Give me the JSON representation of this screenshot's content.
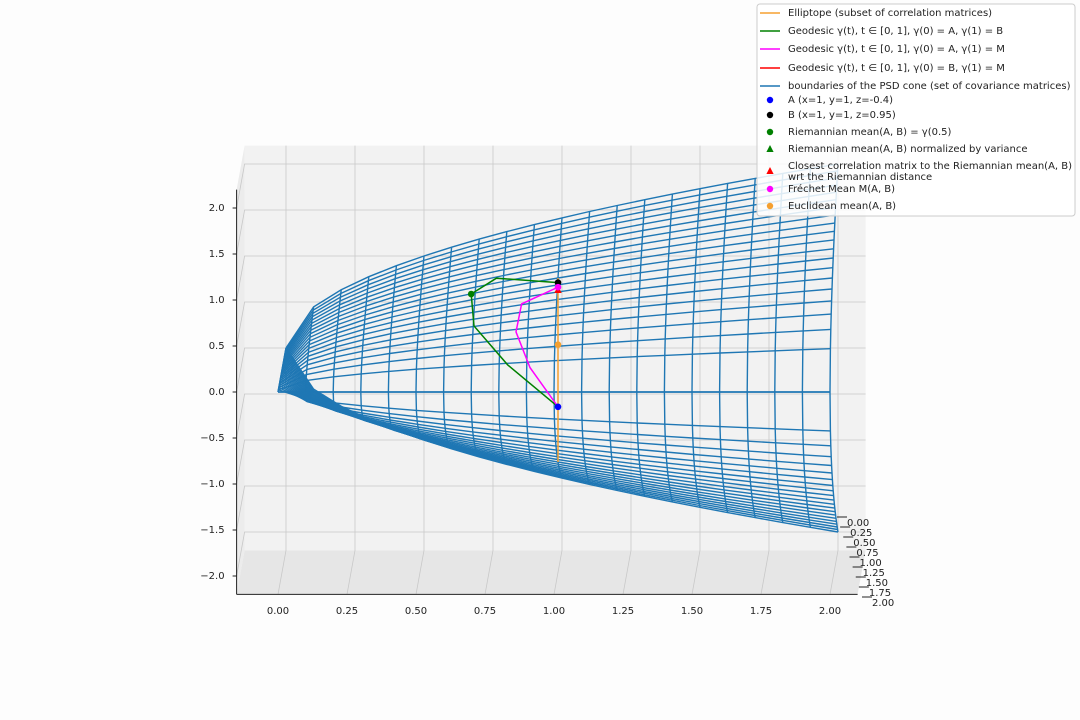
{
  "chart_data": {
    "type": "surface3d",
    "xlim": [
      -0.15,
      2.1
    ],
    "ylim": [
      0,
      2
    ],
    "zlim": [
      -2.2,
      2.2
    ],
    "grid": true,
    "legend": "upper right",
    "xticks": [
      {
        "value": 0,
        "label": "0.00"
      },
      {
        "value": 0.25,
        "label": "0.25"
      },
      {
        "value": 0.5,
        "label": "0.50"
      },
      {
        "value": 0.75,
        "label": "0.75"
      },
      {
        "value": 1,
        "label": "1.00"
      },
      {
        "value": 1.25,
        "label": "1.25"
      },
      {
        "value": 1.5,
        "label": "1.50"
      },
      {
        "value": 1.75,
        "label": "1.75"
      },
      {
        "value": 2,
        "label": "2.00"
      }
    ],
    "yticks": [
      {
        "value": 0,
        "label": "0.00"
      },
      {
        "value": 0.25,
        "label": "0.25"
      },
      {
        "value": 0.5,
        "label": "0.50"
      },
      {
        "value": 0.75,
        "label": "0.75"
      },
      {
        "value": 1,
        "label": "1.00"
      },
      {
        "value": 1.25,
        "label": "1.25"
      },
      {
        "value": 1.5,
        "label": "1.50"
      },
      {
        "value": 1.75,
        "label": "1.75"
      },
      {
        "value": 2,
        "label": "2.00"
      }
    ],
    "zticks": [
      {
        "value": -2,
        "label": "−2.0"
      },
      {
        "value": -1.5,
        "label": "−1.5"
      },
      {
        "value": -1,
        "label": "−1.0"
      },
      {
        "value": -0.5,
        "label": "−0.5"
      },
      {
        "value": 0,
        "label": "0.0"
      },
      {
        "value": 0.5,
        "label": "0.5"
      },
      {
        "value": 1,
        "label": "1.0"
      },
      {
        "value": 1.5,
        "label": "1.5"
      },
      {
        "value": 2,
        "label": "2.0"
      }
    ],
    "series": [
      {
        "name": "Elliptope (subset of correlation matrices)",
        "color": "#f5a030",
        "marker": "line",
        "x": [
          1,
          1
        ],
        "y": [
          1,
          1
        ],
        "z": [
          -1,
          1
        ]
      },
      {
        "name": "Geodesic γ(t), t ∈ [0, 1], γ(0) = A, γ(1) = B",
        "color": "#008000",
        "marker": "line",
        "x": [
          1,
          0.82,
          0.7,
          0.69,
          0.78,
          1
        ],
        "y": [
          1,
          0.82,
          0.7,
          0.69,
          0.78,
          1
        ],
        "z": [
          -0.4,
          0.1,
          0.55,
          0.9,
          1.05,
          0.95
        ]
      },
      {
        "name": "Geodesic γ(t), t ∈ [0, 1], γ(0) = A, γ(1) = M",
        "color": "#ff00ff",
        "marker": "line",
        "x": [
          1,
          0.9,
          0.85,
          0.87,
          1
        ],
        "y": [
          1,
          0.9,
          0.85,
          0.87,
          1
        ],
        "z": [
          -0.4,
          0.05,
          0.45,
          0.75,
          0.9
        ]
      },
      {
        "name": "Geodesic γ(t), t ∈ [0, 1], γ(0) = B, γ(1) = M",
        "color": "#ff0000",
        "marker": "line",
        "x": [
          1,
          1
        ],
        "y": [
          1,
          1
        ],
        "z": [
          0.95,
          0.9
        ]
      },
      {
        "name": "boundaries of the PSD cone (set of covariance matrices)",
        "color": "#1f77b4",
        "marker": "surface"
      },
      {
        "name": "A (x=1, y=1, z=-0.4)",
        "color": "#0000ff",
        "marker": "o",
        "x": [
          1
        ],
        "y": [
          1
        ],
        "z": [
          -0.4
        ]
      },
      {
        "name": "B (x=1, y=1, z=0.95)",
        "color": "#000000",
        "marker": "o",
        "x": [
          1
        ],
        "y": [
          1
        ],
        "z": [
          0.95
        ]
      },
      {
        "name": "Riemannian mean(A, B) = γ(0.5)",
        "color": "#008000",
        "marker": "o",
        "x": [
          0.69
        ],
        "y": [
          0.69
        ],
        "z": [
          0.9
        ]
      },
      {
        "name": "Riemannian mean(A, B) normalized by variance",
        "color": "#008000",
        "marker": "^",
        "x": [
          1
        ],
        "y": [
          1
        ],
        "z": [
          0.87
        ]
      },
      {
        "name": "Closest correlation matrix to the Riemannian mean(A, B)\nwrt the Riemannian distance",
        "color": "#ff0000",
        "marker": "^",
        "x": [
          1
        ],
        "y": [
          1
        ],
        "z": [
          0.87
        ]
      },
      {
        "name": "Fréchet Mean M(A, B)",
        "color": "#ff00ff",
        "marker": "o",
        "x": [
          1
        ],
        "y": [
          1
        ],
        "z": [
          0.9
        ]
      },
      {
        "name": "Euclidean mean(A, B)",
        "color": "#f5a030",
        "marker": "o",
        "x": [
          1
        ],
        "y": [
          1
        ],
        "z": [
          0.275
        ]
      }
    ]
  }
}
